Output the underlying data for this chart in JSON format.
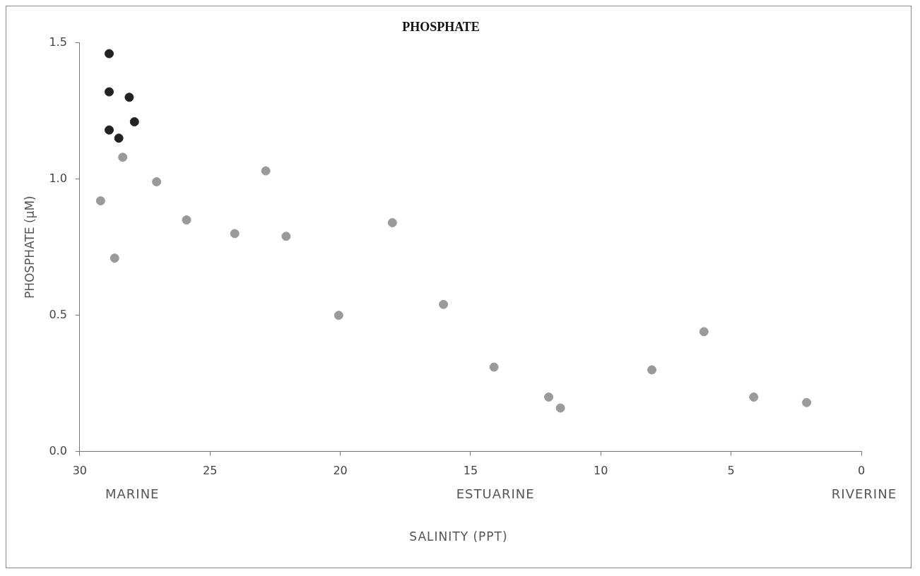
{
  "chart_data": {
    "type": "scatter",
    "title": "PHOSPHATE",
    "xlabel": "SALINITY (PPT)",
    "ylabel": "PHOSPHATE (μM)",
    "annotations": [
      "MARINE",
      "ESTUARINE",
      "RIVERINE"
    ],
    "xlim": [
      30,
      0
    ],
    "xticks": [
      30,
      25,
      20,
      15,
      10,
      5,
      0
    ],
    "ylim": [
      0,
      1.5
    ],
    "yticks": [
      {
        "value": 0,
        "label": "0.0"
      },
      {
        "value": 0.5,
        "label": "0.5"
      },
      {
        "value": 1,
        "label": "1.0"
      },
      {
        "value": 1.5,
        "label": "1.5"
      }
    ],
    "grid": false,
    "legend": false,
    "marker": "circle",
    "series": [
      {
        "color": "#222222",
        "x": [
          28.87,
          28.87,
          28.1,
          28.87,
          27.9,
          28.5
        ],
        "values": [
          1.46,
          1.32,
          1.3,
          1.18,
          1.21,
          1.15
        ]
      },
      {
        "color": "#9a9a9a",
        "x": [
          28.35,
          29.2,
          28.66,
          27.05,
          25.9,
          24.05,
          22.86,
          22.08,
          18.0,
          20.06,
          16.04,
          14.1,
          12.0,
          11.55,
          8.04,
          6.04,
          4.13,
          2.1
        ],
        "values": [
          1.08,
          0.92,
          0.71,
          0.99,
          0.85,
          0.8,
          1.03,
          0.79,
          0.84,
          0.5,
          0.54,
          0.31,
          0.2,
          0.16,
          0.3,
          0.44,
          0.2,
          0.18
        ]
      }
    ]
  }
}
